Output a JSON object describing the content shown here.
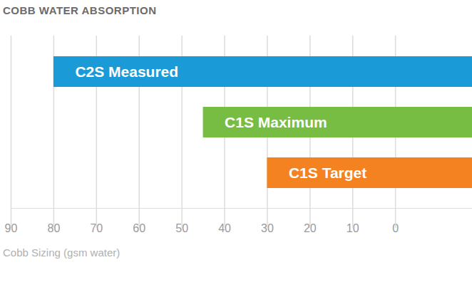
{
  "chart_data": {
    "type": "bar",
    "title": "COBB WATER ABSORPTION",
    "x_label": "Cobb Sizing (gsm water)",
    "orientation": "horizontal",
    "categories": [
      "C2S Measured",
      "C1S Maximum",
      "C1S Target"
    ],
    "values": [
      80,
      45,
      30
    ],
    "colors": [
      "#1a9ad6",
      "#78bd43",
      "#f58220"
    ],
    "xlim": [
      90,
      -18
    ],
    "xticks": [
      90,
      80,
      70,
      60,
      50,
      40,
      30,
      20,
      10,
      0
    ],
    "grid": true,
    "tick_labels": "x"
  }
}
